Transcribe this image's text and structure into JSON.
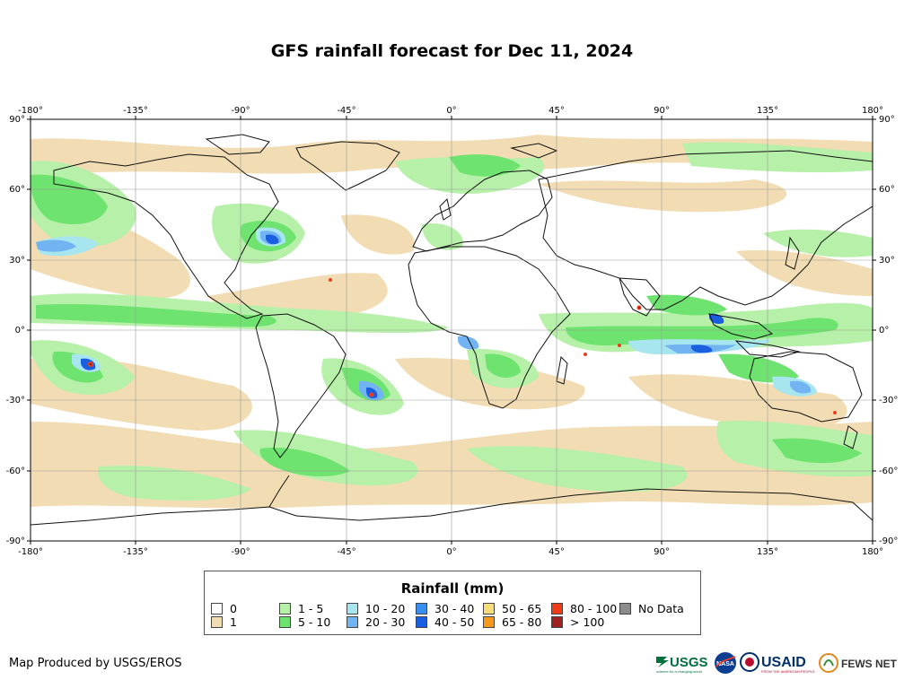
{
  "map": {
    "title": "GFS rainfall forecast for Dec 11, 2024",
    "lon_ticks": [
      "-180°",
      "-135°",
      "-90°",
      "-45°",
      "0°",
      "45°",
      "90°",
      "135°",
      "180°"
    ],
    "lat_ticks": [
      "90°",
      "60°",
      "30°",
      "0°",
      "-30°",
      "-60°",
      "-90°"
    ]
  },
  "legend": {
    "title": "Rainfall (mm)",
    "items": [
      {
        "label": "0",
        "color": "#ffffff"
      },
      {
        "label": "1",
        "color": "#f2dcb3"
      },
      {
        "label": "1 - 5",
        "color": "#b7f0a8"
      },
      {
        "label": "5 - 10",
        "color": "#6fe36f"
      },
      {
        "label": "10 - 20",
        "color": "#a8e6ef"
      },
      {
        "label": "20 - 30",
        "color": "#72b4f2"
      },
      {
        "label": "30 - 40",
        "color": "#3a8ef0"
      },
      {
        "label": "40 - 50",
        "color": "#1a5fe0"
      },
      {
        "label": "50 - 65",
        "color": "#f7dd7a"
      },
      {
        "label": "65 - 80",
        "color": "#f59a1a"
      },
      {
        "label": "80 - 100",
        "color": "#ef3d1a"
      },
      {
        "label": "> 100",
        "color": "#9e2020"
      },
      {
        "label": "No Data",
        "color": "#8c8c8c"
      }
    ]
  },
  "credit": "Map Produced by USGS/EROS",
  "logos": {
    "usgs": "USGS",
    "usgs_tagline": "science for a changing world",
    "nasa": "NASA",
    "usaid": "USAID",
    "usaid_tagline": "FROM THE AMERICAN PEOPLE",
    "fewsnet": "FEWS NET"
  }
}
